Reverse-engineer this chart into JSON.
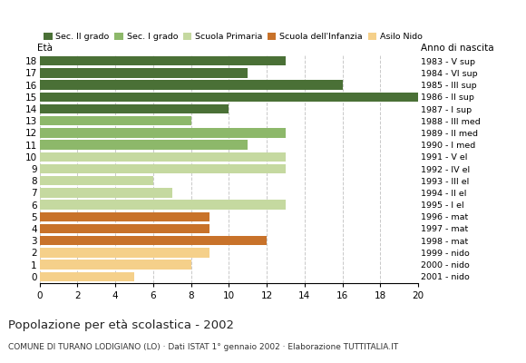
{
  "ages": [
    0,
    1,
    2,
    3,
    4,
    5,
    6,
    7,
    8,
    9,
    10,
    11,
    12,
    13,
    14,
    15,
    16,
    17,
    18
  ],
  "values": [
    5,
    8,
    9,
    12,
    9,
    9,
    13,
    7,
    6,
    13,
    13,
    11,
    13,
    8,
    10,
    20,
    16,
    11,
    13
  ],
  "right_labels": [
    "2001 - nido",
    "2000 - nido",
    "1999 - nido",
    "1998 - mat",
    "1997 - mat",
    "1996 - mat",
    "1995 - I el",
    "1994 - II el",
    "1993 - III el",
    "1992 - IV el",
    "1991 - V el",
    "1990 - I med",
    "1989 - II med",
    "1988 - III med",
    "1987 - I sup",
    "1986 - II sup",
    "1985 - III sup",
    "1984 - VI sup",
    "1983 - V sup"
  ],
  "bar_colors": [
    "#f5d08a",
    "#f5d08a",
    "#f5d08a",
    "#c8722a",
    "#c8722a",
    "#c8722a",
    "#c5d9a0",
    "#c5d9a0",
    "#c5d9a0",
    "#c5d9a0",
    "#c5d9a0",
    "#8db86a",
    "#8db86a",
    "#8db86a",
    "#4a7036",
    "#4a7036",
    "#4a7036",
    "#4a7036",
    "#4a7036"
  ],
  "legend_labels": [
    "Sec. II grado",
    "Sec. I grado",
    "Scuola Primaria",
    "Scuola dell'Infanzia",
    "Asilo Nido"
  ],
  "legend_colors": [
    "#4a7036",
    "#8db86a",
    "#c5d9a0",
    "#c8722a",
    "#f5d08a"
  ],
  "title": "Popolazione per età scolastica - 2002",
  "subtitle": "COMUNE DI TURANO LODIGIANO (LO) · Dati ISTAT 1° gennaio 2002 · Elaborazione TUTTITALIA.IT",
  "label_eta": "Età",
  "label_anno": "Anno di nascita",
  "xlim": [
    0,
    20
  ],
  "xticks": [
    0,
    2,
    4,
    6,
    8,
    10,
    12,
    14,
    16,
    18,
    20
  ],
  "grid_color": "#bbbbbb",
  "background_color": "#ffffff",
  "bar_height": 0.78
}
